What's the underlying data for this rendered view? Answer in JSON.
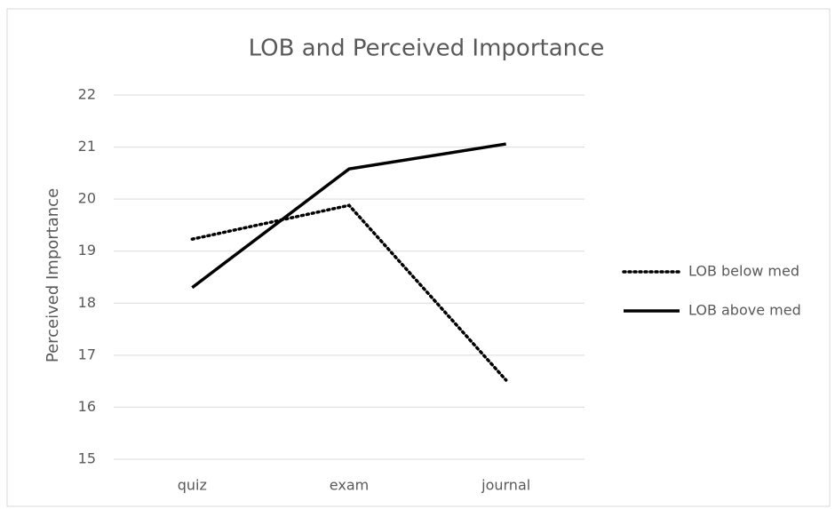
{
  "chart_data": {
    "type": "line",
    "title": "LOB and Perceived Importance",
    "y_label": "Perceived Importance",
    "categories": [
      "quiz",
      "exam",
      "journal"
    ],
    "series": [
      {
        "name": "LOB below med",
        "color": "#000000",
        "line_style": "dotted",
        "values": [
          19.23,
          19.88,
          16.52
        ]
      },
      {
        "name": "LOB above med",
        "color": "#000000",
        "line_style": "solid",
        "values": [
          18.3,
          20.58,
          21.06
        ]
      }
    ],
    "ylim": [
      15,
      22
    ],
    "yticks": [
      15,
      16,
      17,
      18,
      19,
      20,
      21,
      22
    ],
    "grid": true,
    "legend": "right"
  }
}
